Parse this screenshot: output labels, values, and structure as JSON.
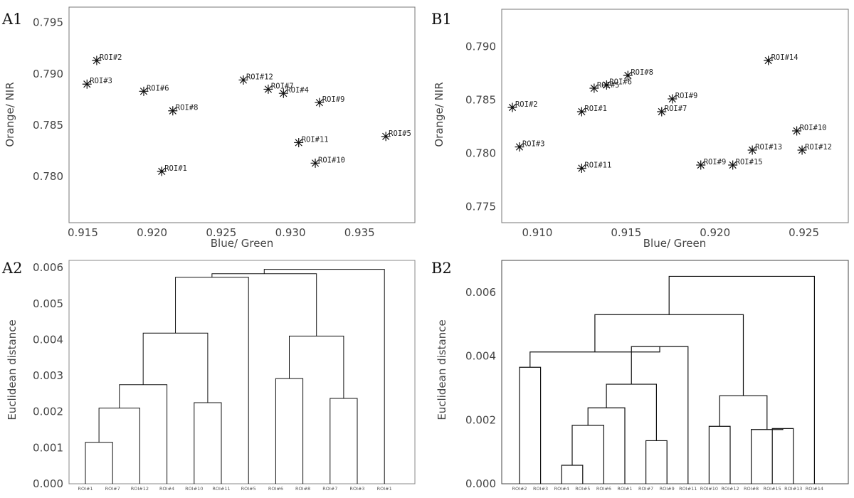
{
  "chart_data": [
    {
      "id": "A1",
      "type": "scatter",
      "panel_label": "A1",
      "xlabel": "Blue/ Green",
      "ylabel": "Orange/ NIR",
      "xlim": [
        0.914,
        0.939
      ],
      "ylim": [
        0.7755,
        0.7965
      ],
      "xticks": [
        0.915,
        0.92,
        0.925,
        0.93,
        0.935
      ],
      "xtick_labels": [
        "0.915",
        "0.920",
        "0.925",
        "0.930",
        "0.935"
      ],
      "yticks": [
        0.78,
        0.785,
        0.79,
        0.795
      ],
      "ytick_labels": [
        "0.780",
        "0.785",
        "0.790",
        "0.795"
      ],
      "points": [
        {
          "label": "ROI#2",
          "x": 0.916,
          "y": 0.7913
        },
        {
          "label": "ROI#3",
          "x": 0.9153,
          "y": 0.789
        },
        {
          "label": "ROI#6",
          "x": 0.9194,
          "y": 0.7883
        },
        {
          "label": "ROI#8",
          "x": 0.9215,
          "y": 0.7864
        },
        {
          "label": "ROI#1",
          "x": 0.9207,
          "y": 0.7805
        },
        {
          "label": "ROI#12",
          "x": 0.9266,
          "y": 0.7894
        },
        {
          "label": "ROI#7",
          "x": 0.9284,
          "y": 0.7885
        },
        {
          "label": "ROI#4",
          "x": 0.9295,
          "y": 0.7881
        },
        {
          "label": "ROI#9",
          "x": 0.9321,
          "y": 0.7872
        },
        {
          "label": "ROI#11",
          "x": 0.9306,
          "y": 0.7833
        },
        {
          "label": "ROI#10",
          "x": 0.9318,
          "y": 0.7813
        },
        {
          "label": "ROI#5",
          "x": 0.9369,
          "y": 0.7839
        }
      ]
    },
    {
      "id": "B1",
      "type": "scatter",
      "panel_label": "B1",
      "xlabel": "Blue/ Green",
      "ylabel": "Orange/ NIR",
      "xlim": [
        0.908,
        0.9275
      ],
      "ylim": [
        0.7735,
        0.7935
      ],
      "xticks": [
        0.91,
        0.915,
        0.92,
        0.925
      ],
      "xtick_labels": [
        "0.910",
        "0.915",
        "0.920",
        "0.925"
      ],
      "yticks": [
        0.775,
        0.78,
        0.785,
        0.79
      ],
      "ytick_labels": [
        "0.775",
        "0.780",
        "0.785",
        "0.790"
      ],
      "points": [
        {
          "label": "ROI#2",
          "x": 0.9086,
          "y": 0.7843
        },
        {
          "label": "ROI#3",
          "x": 0.909,
          "y": 0.7806
        },
        {
          "label": "ROI#1",
          "x": 0.9125,
          "y": 0.7839
        },
        {
          "label": "ROI#11",
          "x": 0.9125,
          "y": 0.7786
        },
        {
          "label": "ROI#5",
          "x": 0.9132,
          "y": 0.7861
        },
        {
          "label": "ROI#6",
          "x": 0.9139,
          "y": 0.7864
        },
        {
          "label": "ROI#8",
          "x": 0.9151,
          "y": 0.7873
        },
        {
          "label": "ROI#9",
          "x": 0.9176,
          "y": 0.7851
        },
        {
          "label": "ROI#7",
          "x": 0.917,
          "y": 0.7839
        },
        {
          "label": "ROI#14",
          "x": 0.923,
          "y": 0.7887
        },
        {
          "label": "ROI#10",
          "x": 0.9246,
          "y": 0.7821
        },
        {
          "label": "ROI#12",
          "x": 0.9249,
          "y": 0.7803
        },
        {
          "label": "ROI#13",
          "x": 0.9221,
          "y": 0.7803
        },
        {
          "label": "ROI#15",
          "x": 0.921,
          "y": 0.7789
        },
        {
          "label": "ROI#9",
          "x": 0.9192,
          "y": 0.7789
        }
      ]
    },
    {
      "id": "A2",
      "type": "dendrogram",
      "panel_label": "A2",
      "ylabel": "Euclidean distance",
      "ylim": [
        0,
        0.0062
      ],
      "yticks": [
        0,
        0.001,
        0.002,
        0.003,
        0.004,
        0.005,
        0.006
      ],
      "ytick_labels": [
        "0.000",
        "0.001",
        "0.002",
        "0.003",
        "0.004",
        "0.005",
        "0.006"
      ],
      "leaves": [
        "ROI#1",
        "ROI#7",
        "ROI#12",
        "ROI#4",
        "ROI#10",
        "ROI#11",
        "ROI#5",
        "ROI#6",
        "ROI#8",
        "ROI#7",
        "ROI#3",
        "ROI#1"
      ],
      "merges": [
        {
          "a": "L0",
          "b": "L1",
          "h": 0.00115
        },
        {
          "a": "N0",
          "b": "L2",
          "h": 0.0021
        },
        {
          "a": "N1",
          "b": "L3",
          "h": 0.00275
        },
        {
          "a": "L4",
          "b": "L5",
          "h": 0.00225
        },
        {
          "a": "N2",
          "b": "N3",
          "h": 0.00418
        },
        {
          "a": "L7",
          "b": "L8",
          "h": 0.00292
        },
        {
          "a": "L9",
          "b": "L10",
          "h": 0.00237
        },
        {
          "a": "N5",
          "b": "N6",
          "h": 0.0041
        },
        {
          "a": "N4",
          "b": "L6",
          "h": 0.00573
        },
        {
          "a": "N8",
          "b": "N7",
          "h": 0.00583
        },
        {
          "a": "N9",
          "b": "L11",
          "h": 0.00595
        }
      ]
    },
    {
      "id": "B2",
      "type": "dendrogram",
      "panel_label": "B2",
      "ylabel": "Euclidean distance",
      "ylim": [
        0,
        0.007
      ],
      "yticks": [
        0,
        0.002,
        0.004,
        0.006
      ],
      "ytick_labels": [
        "0.000",
        "0.002",
        "0.004",
        "0.006"
      ],
      "leaves": [
        "ROI#2",
        "ROI#3",
        "ROI#4",
        "ROI#5",
        "ROI#6",
        "ROI#1",
        "ROI#7",
        "ROI#9",
        "ROI#11",
        "ROI#10",
        "ROI#12",
        "ROI#8",
        "ROI#15",
        "ROI#13",
        "ROI#14"
      ],
      "merges": [
        {
          "a": "L0",
          "b": "L1",
          "h": 0.00365
        },
        {
          "a": "L2",
          "b": "L3",
          "h": 0.00058
        },
        {
          "a": "N1",
          "b": "L4",
          "h": 0.00183
        },
        {
          "a": "N2",
          "b": "L5",
          "h": 0.00238
        },
        {
          "a": "L6",
          "b": "L7",
          "h": 0.00135
        },
        {
          "a": "N3",
          "b": "N4",
          "h": 0.00312
        },
        {
          "a": "N5",
          "b": "L8",
          "h": 0.0043
        },
        {
          "a": "N0",
          "b": "N6",
          "h": 0.00413
        },
        {
          "a": "L12",
          "b": "L13",
          "h": 0.00173
        },
        {
          "a": "L11",
          "b": "N8",
          "h": 0.0017
        },
        {
          "a": "L9",
          "b": "L10",
          "h": 0.0018
        },
        {
          "a": "N10",
          "b": "N9",
          "h": 0.00276
        },
        {
          "a": "N7",
          "b": "N11",
          "h": 0.0053
        },
        {
          "a": "N12",
          "b": "L14",
          "h": 0.0065
        }
      ]
    }
  ]
}
